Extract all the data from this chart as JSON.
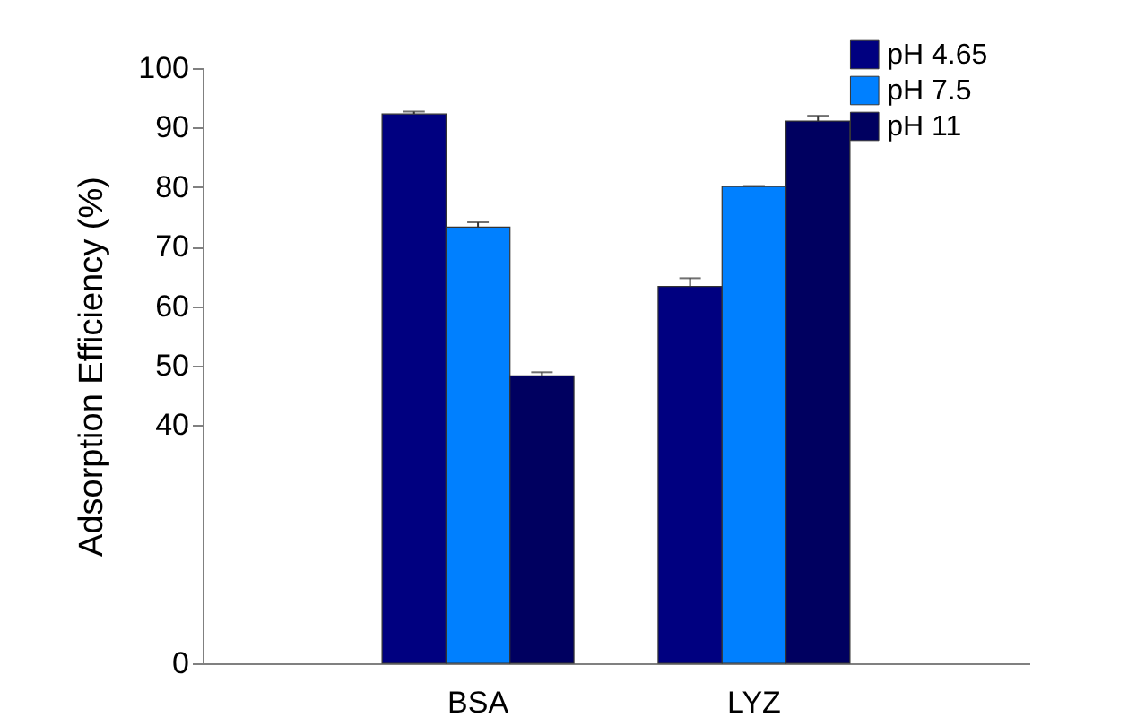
{
  "chart_data": {
    "type": "bar",
    "ylabel": "Adsorption Efficiency (%)",
    "categories": [
      "BSA",
      "LYZ"
    ],
    "series": [
      {
        "name": "pH 4.65",
        "color": "#000080",
        "values": [
          92.3,
          63.3
        ],
        "errors": [
          0.4,
          1.4
        ]
      },
      {
        "name": "pH 7.5",
        "color": "#0080ff",
        "values": [
          73.3,
          80.1
        ],
        "errors": [
          0.8,
          0.1
        ]
      },
      {
        "name": "pH 11",
        "color": "#000060",
        "values": [
          48.3,
          91.1
        ],
        "errors": [
          0.6,
          0.9
        ]
      }
    ],
    "ylim": [
      0,
      100
    ],
    "yticks": [
      0,
      40,
      50,
      60,
      70,
      80,
      90,
      100
    ],
    "legend": "top right",
    "grid": false
  }
}
